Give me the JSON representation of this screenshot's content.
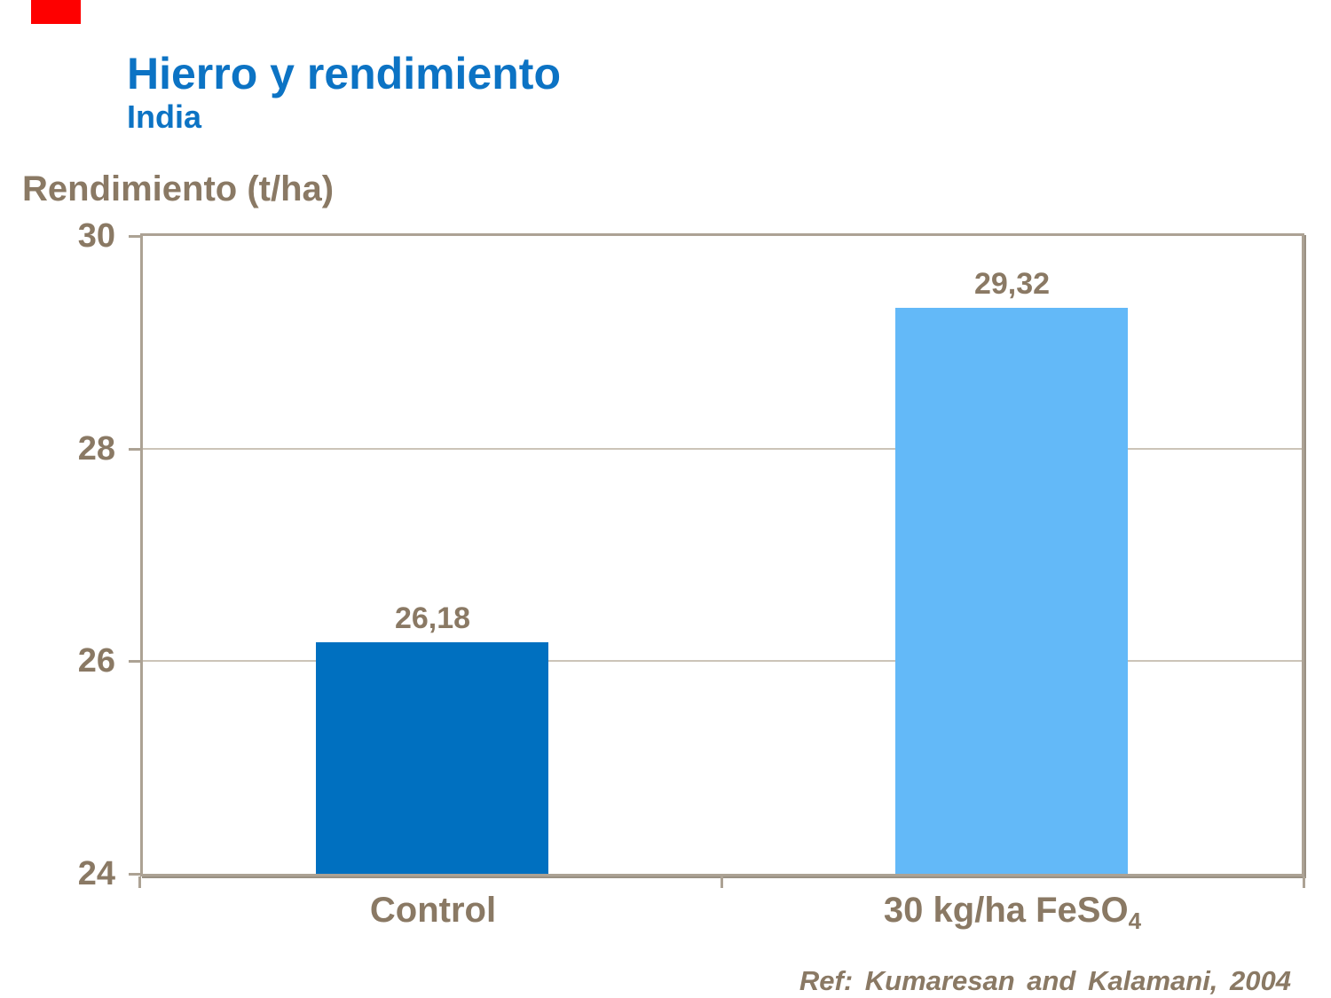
{
  "slide": {
    "title": "Hierro y rendimiento",
    "subtitle": "India",
    "y_axis_title": "Rendimiento (t/ha)",
    "reference": "Ref: Kumaresan and Kalamani, 2004",
    "accent_color": "#FE0000"
  },
  "colors": {
    "title_blue": "#0C73C4",
    "text_brown": "#8A7964",
    "axis_line": "#ACA294",
    "gridline": "#CCC4B8",
    "bar_control": "#0070C0",
    "bar_feso4": "#63B9F8"
  },
  "chart_data": {
    "type": "bar",
    "title": "Hierro y rendimiento (India)",
    "categories": [
      "Control",
      "30 kg/ha FeSO4"
    ],
    "values": [
      26.18,
      29.32
    ],
    "value_labels": [
      "26,18",
      "29,32"
    ],
    "series_colors": [
      "#0070C0",
      "#63B9F8"
    ],
    "xlabel": "",
    "ylabel": "Rendimiento (t/ha)",
    "ylim": [
      24,
      30
    ],
    "yticks": [
      30,
      28,
      26,
      24
    ],
    "grid": "horizontal-major",
    "legend": "none",
    "category_labels_rich": [
      {
        "text": "Control",
        "sub": ""
      },
      {
        "text": "30 kg/ha FeSO",
        "sub": "4"
      }
    ]
  }
}
